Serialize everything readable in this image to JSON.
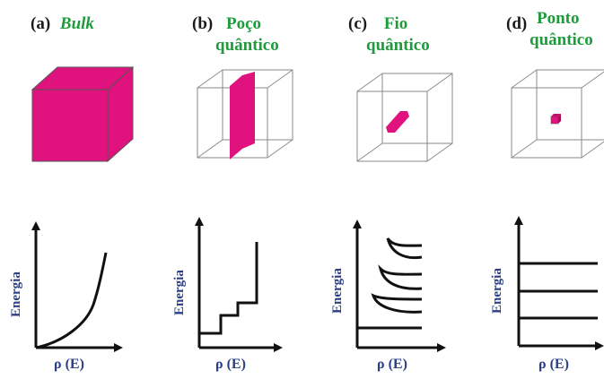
{
  "panels": [
    {
      "letter": "(a)",
      "title_1": "Bulk",
      "title_2": ""
    },
    {
      "letter": "(b)",
      "title_1": "Poço",
      "title_2": "quântico"
    },
    {
      "letter": "(c)",
      "title_1": "Fio",
      "title_2": "quântico"
    },
    {
      "letter": "(d)",
      "title_1": "Ponto",
      "title_2": "quântico"
    }
  ],
  "axis": {
    "y_label": "Energia",
    "x_label": "ρ (E)"
  },
  "colors": {
    "magenta": "#e0127e",
    "green": "#1f9a3c",
    "axis_label": "#2b3f86",
    "line": "#111111",
    "cube_edge": "#8a8a8a"
  }
}
